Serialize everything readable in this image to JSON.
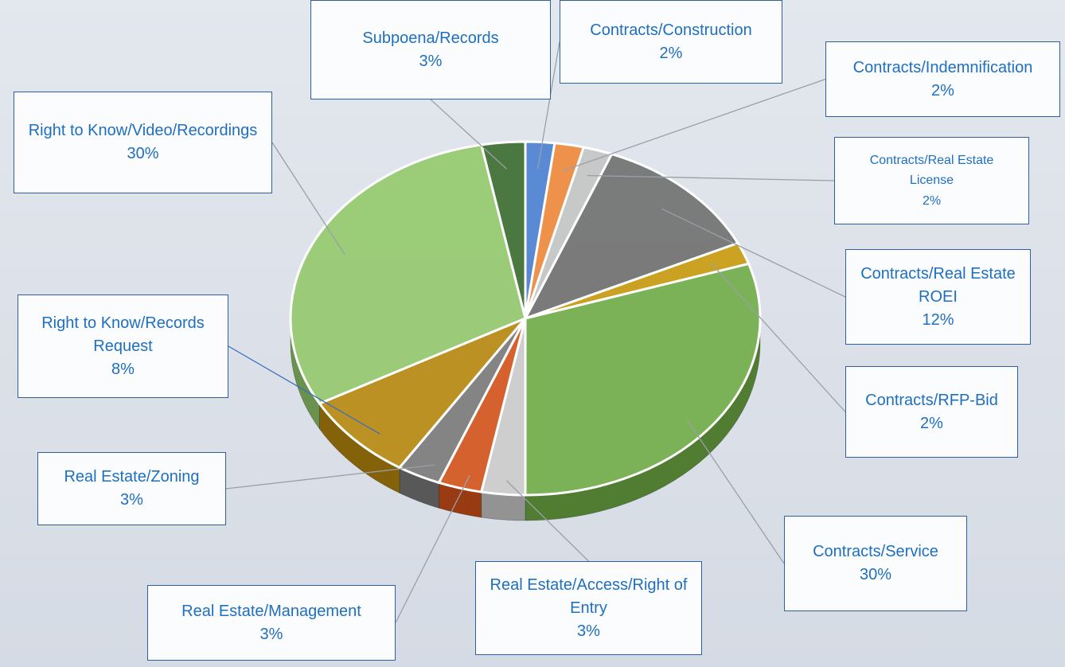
{
  "chart_data": {
    "type": "pie",
    "categories": [
      "Contracts/Construction",
      "Contracts/Indemnification",
      "Contracts/Real Estate License",
      "Contracts/Real Estate ROEI",
      "Contracts/RFP-Bid",
      "Contracts/Service",
      "Real Estate/Access/Right of Entry",
      "Real Estate/Management",
      "Real Estate/Zoning",
      "Right to Know/Records Request",
      "Right to Know/Video/Recordings",
      "Subpoena/Records"
    ],
    "values": [
      2,
      2,
      2,
      12,
      2,
      30,
      3,
      3,
      3,
      8,
      30,
      3
    ],
    "value_labels": [
      "2%",
      "2%",
      "2%",
      "12%",
      "2%",
      "30%",
      "3%",
      "3%",
      "3%",
      "8%",
      "30%",
      "3%"
    ],
    "colors": [
      "#4a7fd0",
      "#f0883a",
      "#c4c4c4",
      "#6f6f6f",
      "#c99a0c",
      "#71ad47",
      "#cccccc",
      "#d4531a",
      "#7a7a7a",
      "#b8880e",
      "#94c96c",
      "#3b6b2d"
    ]
  }
}
